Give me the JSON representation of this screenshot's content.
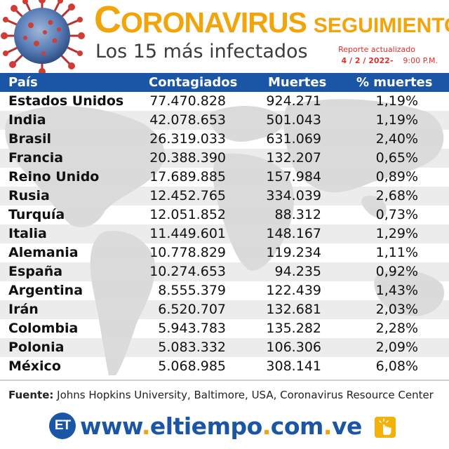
{
  "header": {
    "title_initial": "C",
    "title_rest": "ORONAVIRUS",
    "title_tag": "SEGUIMIENTO",
    "subtitle": "Los 15 más infectados",
    "report_label": "Reporte actualizado",
    "report_date": "4 / 2 / 2022-",
    "report_time": "9:00 P.M."
  },
  "table": {
    "columns": [
      "País",
      "Contagiados",
      "Muertes",
      "% muertes"
    ],
    "rows": [
      {
        "country": "Estados Unidos",
        "cases": "77.470.828",
        "deaths": "924.271",
        "pct": "1,19%"
      },
      {
        "country": "India",
        "cases": "42.078.653",
        "deaths": "501.043",
        "pct": "1,19%"
      },
      {
        "country": "Brasil",
        "cases": "26.319.033",
        "deaths": "631.069",
        "pct": "2,40%"
      },
      {
        "country": "Francia",
        "cases": "20.388.390",
        "deaths": "132.207",
        "pct": "0,65%"
      },
      {
        "country": "Reino Unido",
        "cases": "17.689.885",
        "deaths": "157.984",
        "pct": "0,89%"
      },
      {
        "country": "Rusia",
        "cases": "12.452.765",
        "deaths": "334.039",
        "pct": "2,68%"
      },
      {
        "country": "Turquía",
        "cases": "12.051.852",
        "deaths": "88.312",
        "pct": "0,73%"
      },
      {
        "country": "Italia",
        "cases": "11.449.601",
        "deaths": "148.167",
        "pct": "1,29%"
      },
      {
        "country": "Alemania",
        "cases": "10.778.829",
        "deaths": "119.234",
        "pct": "1,11%"
      },
      {
        "country": "España",
        "cases": "10.274.653",
        "deaths": "94.235",
        "pct": "0,92%"
      },
      {
        "country": "Argentina",
        "cases": "8.555.379",
        "deaths": "122.439",
        "pct": "1,43%"
      },
      {
        "country": "Irán",
        "cases": "6.520.707",
        "deaths": "132.681",
        "pct": "2,03%"
      },
      {
        "country": "Colombia",
        "cases": "5.943.783",
        "deaths": "135.282",
        "pct": "2,28%"
      },
      {
        "country": "Polonia",
        "cases": "5.083.332",
        "deaths": "106.306",
        "pct": "2,09%"
      },
      {
        "country": "México",
        "cases": "5.068.985",
        "deaths": "308.141",
        "pct": "6,08%"
      }
    ]
  },
  "source": {
    "label": "Fuente:",
    "text": "Johns Hopkins University, Baltimore, USA, Coronavirus Resource Center"
  },
  "footer": {
    "logo_text": "ET",
    "url_www": "www",
    "url_site": "eltiempo",
    "url_com": "com",
    "url_ve": "ve",
    "click_icon": "hand-click-icon"
  },
  "colors": {
    "accent": "#f2a40b",
    "header_blue": "#1b56a6",
    "report_red": "#e0302a"
  }
}
